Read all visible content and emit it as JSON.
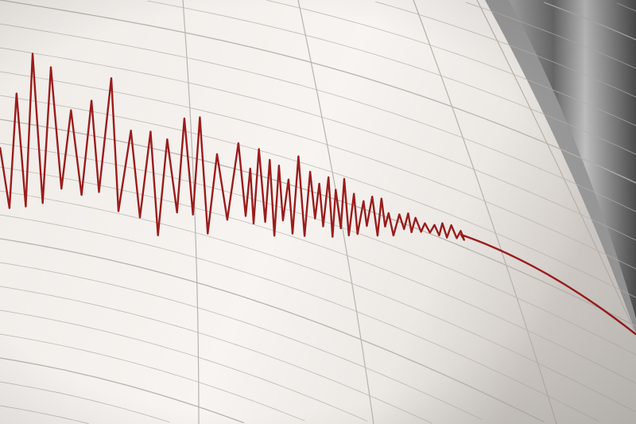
{
  "scene": {
    "subject": "seismograph",
    "colors": {
      "paper": "#f4f0ec",
      "paper_shadow": "#d9d4cf",
      "grid": "#b9b3ad",
      "trace": "#9a1c1c",
      "drum": "#8c8c8c",
      "drum_dark": "#4a4a4a"
    }
  }
}
